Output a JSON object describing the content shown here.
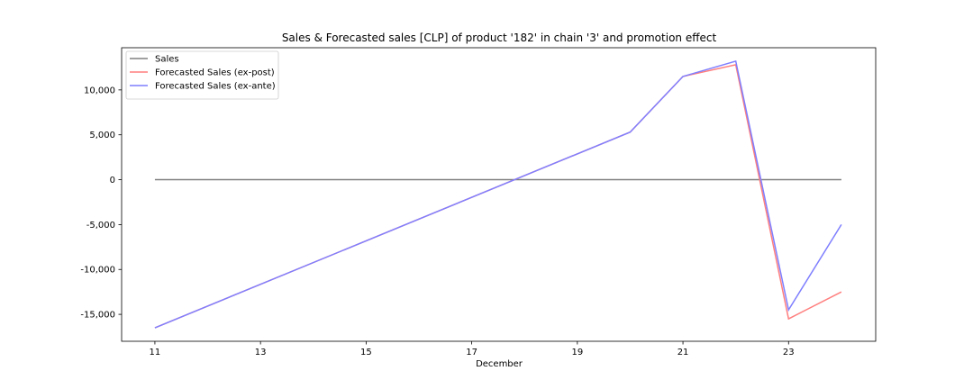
{
  "chart_data": {
    "type": "line",
    "title": "Sales & Forecasted sales [CLP] of product '182' in chain '3' and promotion effect",
    "xlabel": "December",
    "ylabel": "",
    "x": [
      11,
      20,
      21,
      22,
      23,
      24
    ],
    "xlim": [
      10.37,
      24.65
    ],
    "ylim": [
      -18000,
      14700
    ],
    "x_ticks": [
      11,
      13,
      15,
      17,
      19,
      21,
      23
    ],
    "x_tick_labels": [
      "11",
      "13",
      "15",
      "17",
      "19",
      "21",
      "23"
    ],
    "y_ticks": [
      -15000,
      -10000,
      -5000,
      0,
      5000,
      10000
    ],
    "y_tick_labels": [
      "-15,000",
      "-10,000",
      "-5,000",
      "0",
      "5,000",
      "10,000"
    ],
    "grid": false,
    "legend_position": "top-left",
    "series": [
      {
        "name": "Sales",
        "color": "#808080",
        "values": [
          0,
          0,
          0,
          0,
          0,
          0
        ]
      },
      {
        "name": "Forecasted Sales (ex-post)",
        "color": "#ff7f7f",
        "values": [
          -16500,
          5300,
          11500,
          12800,
          -15500,
          -12500
        ]
      },
      {
        "name": "Forecasted Sales (ex-ante)",
        "color": "#7f7fff",
        "values": [
          -16500,
          5300,
          11500,
          13200,
          -14500,
          -5000
        ]
      }
    ]
  }
}
